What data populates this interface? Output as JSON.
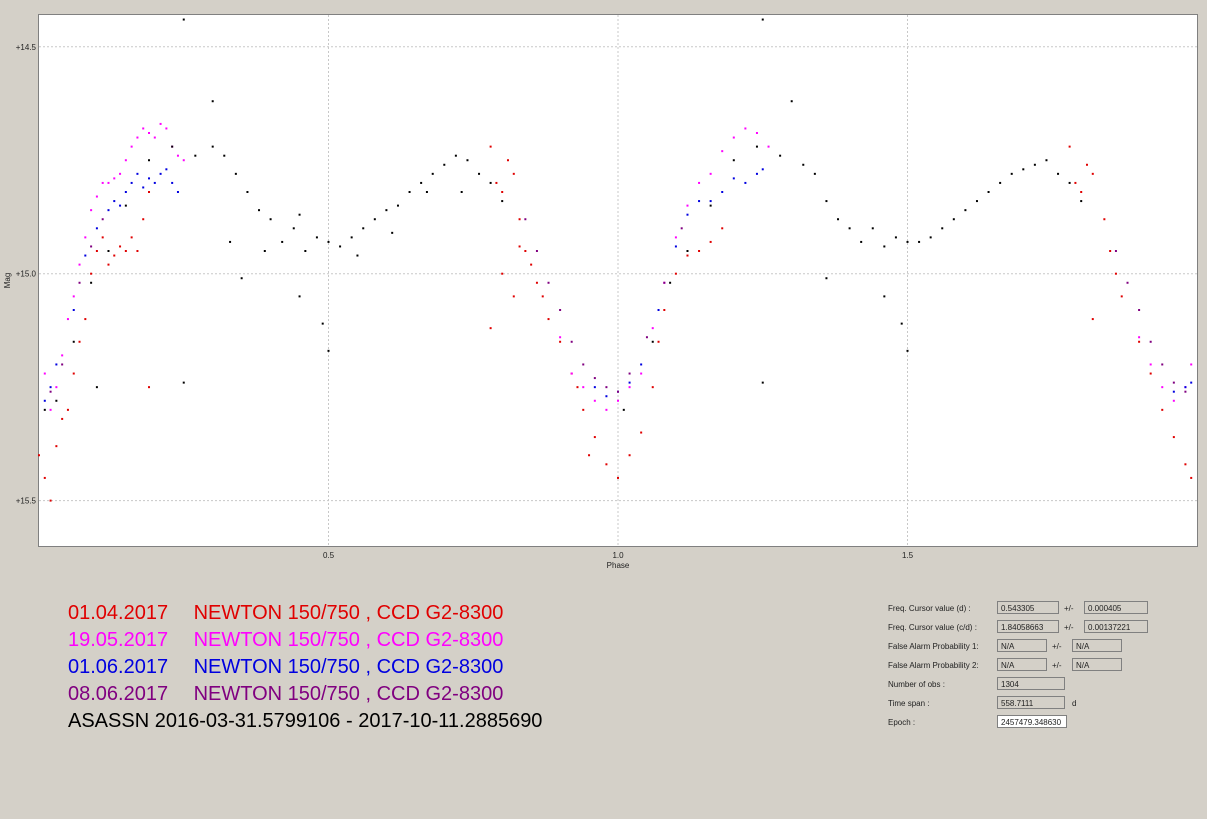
{
  "chart_data": {
    "type": "scatter",
    "xlabel": "Phase",
    "ylabel": "Mag",
    "xlim": [
      0.0,
      2.0
    ],
    "ylim": [
      15.6,
      14.43
    ],
    "y_inverted": true,
    "x_ticks": [
      {
        "value": 0.5,
        "label": "0.5"
      },
      {
        "value": 1.0,
        "label": "1.0"
      },
      {
        "value": 1.5,
        "label": "1.5"
      }
    ],
    "y_ticks": [
      {
        "value": 14.5,
        "label": "+14.5"
      },
      {
        "value": 15.0,
        "label": "+15.0"
      },
      {
        "value": 15.5,
        "label": "+15.5"
      }
    ],
    "grid": true,
    "series": [
      {
        "name": "01.04.2017",
        "color": "#e00000",
        "points": [
          [
            0.0,
            15.4
          ],
          [
            0.01,
            15.45
          ],
          [
            0.02,
            15.5
          ],
          [
            0.03,
            15.38
          ],
          [
            0.04,
            15.32
          ],
          [
            0.05,
            15.3
          ],
          [
            0.06,
            15.22
          ],
          [
            0.07,
            15.15
          ],
          [
            0.08,
            15.1
          ],
          [
            0.09,
            15.0
          ],
          [
            0.1,
            14.95
          ],
          [
            0.11,
            14.92
          ],
          [
            0.12,
            14.98
          ],
          [
            0.13,
            14.96
          ],
          [
            0.14,
            14.94
          ],
          [
            0.15,
            14.95
          ],
          [
            0.16,
            14.92
          ],
          [
            0.17,
            14.95
          ],
          [
            0.18,
            14.88
          ],
          [
            0.19,
            14.82
          ],
          [
            0.78,
            14.72
          ],
          [
            0.79,
            14.8
          ],
          [
            0.8,
            14.82
          ],
          [
            0.81,
            14.75
          ],
          [
            0.82,
            14.78
          ],
          [
            0.83,
            14.88
          ],
          [
            0.84,
            14.95
          ],
          [
            0.85,
            14.98
          ],
          [
            0.86,
            15.02
          ],
          [
            0.87,
            15.05
          ],
          [
            0.78,
            15.12
          ],
          [
            0.8,
            15.0
          ],
          [
            0.82,
            15.05
          ],
          [
            0.88,
            15.1
          ],
          [
            0.9,
            15.15
          ],
          [
            0.92,
            15.22
          ],
          [
            0.94,
            15.3
          ],
          [
            0.96,
            15.36
          ],
          [
            0.98,
            15.42
          ],
          [
            1.0,
            15.45
          ],
          [
            1.02,
            15.4
          ],
          [
            1.04,
            15.35
          ],
          [
            1.06,
            15.25
          ],
          [
            1.07,
            15.15
          ],
          [
            1.08,
            15.08
          ],
          [
            1.1,
            15.0
          ],
          [
            1.12,
            14.96
          ],
          [
            1.14,
            14.95
          ],
          [
            1.16,
            14.93
          ],
          [
            1.18,
            14.9
          ],
          [
            1.78,
            14.72
          ],
          [
            1.79,
            14.8
          ],
          [
            1.8,
            14.82
          ],
          [
            1.81,
            14.76
          ],
          [
            1.82,
            14.78
          ],
          [
            1.84,
            14.88
          ],
          [
            1.85,
            14.95
          ],
          [
            1.86,
            15.0
          ],
          [
            1.87,
            15.05
          ],
          [
            1.9,
            15.15
          ],
          [
            1.92,
            15.22
          ],
          [
            1.94,
            15.3
          ],
          [
            1.96,
            15.36
          ],
          [
            1.98,
            15.42
          ],
          [
            1.99,
            15.45
          ],
          [
            0.93,
            15.25
          ],
          [
            0.95,
            15.4
          ],
          [
            0.19,
            15.25
          ],
          [
            1.82,
            15.1
          ],
          [
            0.83,
            14.94
          ]
        ]
      },
      {
        "name": "19.05.2017",
        "color": "#ff00ff",
        "points": [
          [
            0.01,
            15.22
          ],
          [
            0.02,
            15.3
          ],
          [
            0.03,
            15.25
          ],
          [
            0.04,
            15.18
          ],
          [
            0.05,
            15.1
          ],
          [
            0.06,
            15.05
          ],
          [
            0.07,
            14.98
          ],
          [
            0.08,
            14.92
          ],
          [
            0.09,
            14.86
          ],
          [
            0.1,
            14.83
          ],
          [
            0.11,
            14.8
          ],
          [
            0.12,
            14.8
          ],
          [
            0.13,
            14.79
          ],
          [
            0.14,
            14.78
          ],
          [
            0.15,
            14.75
          ],
          [
            0.16,
            14.72
          ],
          [
            0.17,
            14.7
          ],
          [
            0.18,
            14.68
          ],
          [
            0.19,
            14.69
          ],
          [
            0.2,
            14.7
          ],
          [
            0.21,
            14.67
          ],
          [
            0.22,
            14.68
          ],
          [
            0.23,
            14.72
          ],
          [
            0.24,
            14.74
          ],
          [
            0.25,
            14.75
          ],
          [
            0.9,
            15.14
          ],
          [
            0.92,
            15.22
          ],
          [
            0.94,
            15.25
          ],
          [
            0.96,
            15.28
          ],
          [
            0.98,
            15.3
          ],
          [
            1.0,
            15.28
          ],
          [
            1.02,
            15.25
          ],
          [
            1.04,
            15.22
          ],
          [
            1.06,
            15.12
          ],
          [
            1.08,
            15.02
          ],
          [
            1.1,
            14.92
          ],
          [
            1.12,
            14.85
          ],
          [
            1.14,
            14.8
          ],
          [
            1.16,
            14.78
          ],
          [
            1.18,
            14.73
          ],
          [
            1.2,
            14.7
          ],
          [
            1.22,
            14.68
          ],
          [
            1.24,
            14.69
          ],
          [
            1.26,
            14.72
          ],
          [
            1.9,
            15.14
          ],
          [
            1.92,
            15.2
          ],
          [
            1.94,
            15.25
          ],
          [
            1.96,
            15.28
          ],
          [
            1.98,
            15.25
          ],
          [
            1.99,
            15.2
          ]
        ]
      },
      {
        "name": "01.06.2017",
        "color": "#0000e0",
        "points": [
          [
            0.01,
            15.28
          ],
          [
            0.02,
            15.25
          ],
          [
            0.03,
            15.2
          ],
          [
            0.06,
            15.08
          ],
          [
            0.08,
            14.96
          ],
          [
            0.1,
            14.9
          ],
          [
            0.12,
            14.86
          ],
          [
            0.13,
            14.84
          ],
          [
            0.14,
            14.85
          ],
          [
            0.15,
            14.82
          ],
          [
            0.16,
            14.8
          ],
          [
            0.17,
            14.78
          ],
          [
            0.18,
            14.81
          ],
          [
            0.19,
            14.79
          ],
          [
            0.2,
            14.8
          ],
          [
            0.21,
            14.78
          ],
          [
            0.22,
            14.77
          ],
          [
            0.23,
            14.8
          ],
          [
            0.24,
            14.82
          ],
          [
            0.96,
            15.25
          ],
          [
            0.98,
            15.27
          ],
          [
            1.0,
            15.26
          ],
          [
            1.02,
            15.24
          ],
          [
            1.04,
            15.2
          ],
          [
            1.07,
            15.08
          ],
          [
            1.1,
            14.94
          ],
          [
            1.12,
            14.87
          ],
          [
            1.14,
            14.84
          ],
          [
            1.16,
            14.84
          ],
          [
            1.18,
            14.82
          ],
          [
            1.2,
            14.79
          ],
          [
            1.22,
            14.8
          ],
          [
            1.24,
            14.78
          ],
          [
            1.25,
            14.77
          ],
          [
            1.96,
            15.26
          ],
          [
            1.98,
            15.25
          ],
          [
            1.99,
            15.24
          ]
        ]
      },
      {
        "name": "08.06.2017",
        "color": "#800080",
        "points": [
          [
            0.02,
            15.26
          ],
          [
            0.04,
            15.2
          ],
          [
            0.07,
            15.02
          ],
          [
            0.09,
            14.94
          ],
          [
            0.11,
            14.88
          ],
          [
            0.84,
            14.88
          ],
          [
            0.86,
            14.95
          ],
          [
            0.88,
            15.02
          ],
          [
            0.9,
            15.08
          ],
          [
            0.92,
            15.15
          ],
          [
            0.94,
            15.2
          ],
          [
            0.96,
            15.23
          ],
          [
            0.98,
            15.25
          ],
          [
            1.0,
            15.26
          ],
          [
            1.02,
            15.22
          ],
          [
            1.05,
            15.14
          ],
          [
            1.08,
            15.02
          ],
          [
            1.11,
            14.9
          ],
          [
            1.86,
            14.95
          ],
          [
            1.88,
            15.02
          ],
          [
            1.9,
            15.08
          ],
          [
            1.92,
            15.15
          ],
          [
            1.94,
            15.2
          ],
          [
            1.96,
            15.24
          ],
          [
            1.98,
            15.26
          ]
        ]
      },
      {
        "name": "ASASSN",
        "color": "#000000",
        "points": [
          [
            0.01,
            15.3
          ],
          [
            0.03,
            15.28
          ],
          [
            0.06,
            15.15
          ],
          [
            0.09,
            15.02
          ],
          [
            0.12,
            14.95
          ],
          [
            0.15,
            14.85
          ],
          [
            0.19,
            14.75
          ],
          [
            0.23,
            14.72
          ],
          [
            0.27,
            14.74
          ],
          [
            0.3,
            14.72
          ],
          [
            0.32,
            14.74
          ],
          [
            0.34,
            14.78
          ],
          [
            0.36,
            14.82
          ],
          [
            0.38,
            14.86
          ],
          [
            0.4,
            14.88
          ],
          [
            0.42,
            14.93
          ],
          [
            0.44,
            14.9
          ],
          [
            0.46,
            14.95
          ],
          [
            0.48,
            14.92
          ],
          [
            0.5,
            14.93
          ],
          [
            0.52,
            14.94
          ],
          [
            0.54,
            14.92
          ],
          [
            0.56,
            14.9
          ],
          [
            0.58,
            14.88
          ],
          [
            0.6,
            14.86
          ],
          [
            0.62,
            14.85
          ],
          [
            0.64,
            14.82
          ],
          [
            0.66,
            14.8
          ],
          [
            0.68,
            14.78
          ],
          [
            0.7,
            14.76
          ],
          [
            0.72,
            14.74
          ],
          [
            0.74,
            14.75
          ],
          [
            0.76,
            14.78
          ],
          [
            0.78,
            14.8
          ],
          [
            0.8,
            14.84
          ],
          [
            0.33,
            14.93
          ],
          [
            0.39,
            14.95
          ],
          [
            0.45,
            14.87
          ],
          [
            0.55,
            14.96
          ],
          [
            0.61,
            14.91
          ],
          [
            0.67,
            14.82
          ],
          [
            0.73,
            14.82
          ],
          [
            0.25,
            14.44
          ],
          [
            0.3,
            14.62
          ],
          [
            0.35,
            15.01
          ],
          [
            0.45,
            15.05
          ],
          [
            0.49,
            15.11
          ],
          [
            0.5,
            15.17
          ],
          [
            0.25,
            15.24
          ],
          [
            0.1,
            15.25
          ],
          [
            1.01,
            15.3
          ],
          [
            1.06,
            15.15
          ],
          [
            1.09,
            15.02
          ],
          [
            1.12,
            14.95
          ],
          [
            1.16,
            14.85
          ],
          [
            1.2,
            14.75
          ],
          [
            1.24,
            14.72
          ],
          [
            1.28,
            14.74
          ],
          [
            1.32,
            14.76
          ],
          [
            1.34,
            14.78
          ],
          [
            1.36,
            14.84
          ],
          [
            1.38,
            14.88
          ],
          [
            1.4,
            14.9
          ],
          [
            1.42,
            14.93
          ],
          [
            1.44,
            14.9
          ],
          [
            1.46,
            14.94
          ],
          [
            1.48,
            14.92
          ],
          [
            1.5,
            14.93
          ],
          [
            1.52,
            14.93
          ],
          [
            1.54,
            14.92
          ],
          [
            1.56,
            14.9
          ],
          [
            1.58,
            14.88
          ],
          [
            1.6,
            14.86
          ],
          [
            1.62,
            14.84
          ],
          [
            1.64,
            14.82
          ],
          [
            1.66,
            14.8
          ],
          [
            1.68,
            14.78
          ],
          [
            1.7,
            14.77
          ],
          [
            1.72,
            14.76
          ],
          [
            1.74,
            14.75
          ],
          [
            1.76,
            14.78
          ],
          [
            1.78,
            14.8
          ],
          [
            1.8,
            14.84
          ],
          [
            1.25,
            14.44
          ],
          [
            1.3,
            14.62
          ],
          [
            1.36,
            15.01
          ],
          [
            1.46,
            15.05
          ],
          [
            1.49,
            15.11
          ],
          [
            1.5,
            15.17
          ],
          [
            1.25,
            15.24
          ]
        ]
      }
    ]
  },
  "legend": {
    "rows": [
      {
        "date": "01.04.2017",
        "text": "NEWTON 150/750 , CCD G2-8300",
        "color": "#e00000"
      },
      {
        "date": "19.05.2017",
        "text": "NEWTON 150/750 , CCD G2-8300",
        "color": "#ff00ff"
      },
      {
        "date": "01.06.2017",
        "text": "NEWTON 150/750 , CCD G2-8300",
        "color": "#0000e0"
      },
      {
        "date": "08.06.2017",
        "text": "NEWTON 150/750 , CCD G2-8300",
        "color": "#800080"
      }
    ],
    "asassn_label": "ASASSN  2016-03-31.5799106 - 2017-10-11.2885690",
    "asassn_color": "#000000"
  },
  "info": {
    "freq_d_label": "Freq. Cursor value (d) :",
    "freq_d_value": "0.543305",
    "freq_d_pm": "+/-",
    "freq_d_err": "0.000405",
    "freq_cd_label": "Freq. Cursor value (c/d) :",
    "freq_cd_value": "1.84058663",
    "freq_cd_pm": "+/-",
    "freq_cd_err": "0.00137221",
    "fap1_label": "False Alarm Probability 1:",
    "fap1_value": "N/A",
    "fap1_pm": "+/-",
    "fap1_err": "N/A",
    "fap2_label": "False Alarm Probability 2:",
    "fap2_value": "N/A",
    "fap2_pm": "+/-",
    "fap2_err": "N/A",
    "nobs_label": "Number of obs :",
    "nobs_value": "1304",
    "timespan_label": "Time span :",
    "timespan_value": "558.7111",
    "timespan_unit": "d",
    "epoch_label": "Epoch :",
    "epoch_value": "2457479.348630"
  }
}
